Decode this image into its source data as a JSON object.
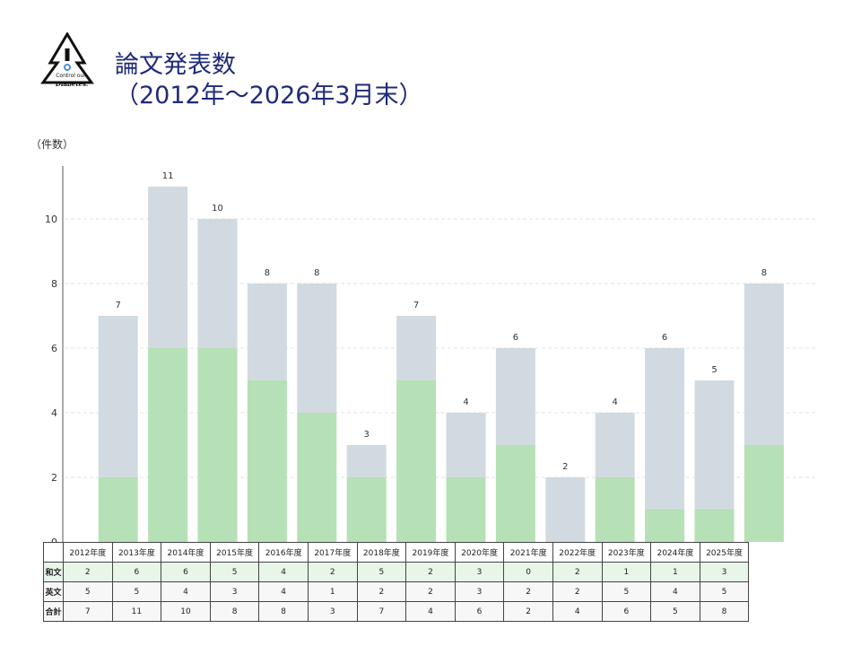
{
  "logo": {
    "line1": "Control our",
    "line2": "Diabetes."
  },
  "title": {
    "line1": "論文発表数",
    "line2": "（2012年～2026年3月末）"
  },
  "unit_label": "（件数）",
  "colors": {
    "japanese": "#b6e0b6",
    "english": "#d1dae0",
    "title": "#1f2a7a"
  },
  "table": {
    "row_labels": [
      "和文",
      "英文",
      "合計"
    ]
  },
  "chart_data": {
    "type": "bar",
    "stacked": true,
    "categories": [
      "2012年度",
      "2013年度",
      "2014年度",
      "2015年度",
      "2016年度",
      "2017年度",
      "2018年度",
      "2019年度",
      "2020年度",
      "2021年度",
      "2022年度",
      "2023年度",
      "2024年度",
      "2025年度"
    ],
    "series": [
      {
        "name": "和文",
        "values": [
          2,
          6,
          6,
          5,
          4,
          2,
          5,
          2,
          3,
          0,
          2,
          1,
          1,
          3
        ]
      },
      {
        "name": "英文",
        "values": [
          5,
          5,
          4,
          3,
          4,
          1,
          2,
          2,
          3,
          2,
          2,
          5,
          4,
          5
        ]
      }
    ],
    "totals": [
      7,
      11,
      10,
      8,
      8,
      3,
      7,
      4,
      6,
      2,
      4,
      6,
      5,
      8
    ],
    "ylim": [
      0,
      11.5
    ],
    "yticks": [
      0,
      2,
      4,
      6,
      8,
      10
    ],
    "grid": true,
    "xlabel": "",
    "ylabel": "（件数）"
  }
}
